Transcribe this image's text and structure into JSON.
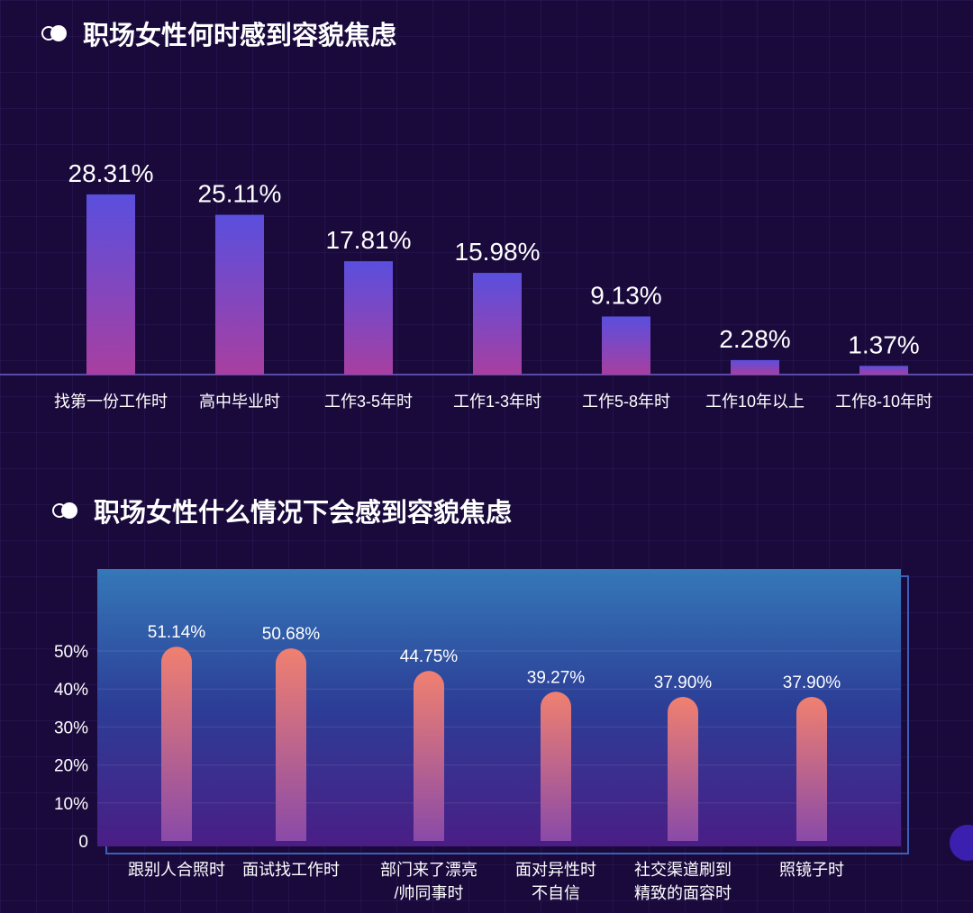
{
  "section1": {
    "title": "职场女性何时感到容貌焦虑"
  },
  "section2": {
    "title": "职场女性什么情况下会感到容貌焦虑"
  },
  "chart_data": [
    {
      "type": "bar",
      "title": "职场女性何时感到容貌焦虑",
      "categories": [
        "找第一份工作时",
        "高中毕业时",
        "工作3-5年时",
        "工作1-3年时",
        "工作5-8年时",
        "工作10年以上",
        "工作8-10年时"
      ],
      "values": [
        28.31,
        25.11,
        17.81,
        15.98,
        9.13,
        2.28,
        1.37
      ],
      "value_labels": [
        "28.31%",
        "25.11%",
        "17.81%",
        "15.98%",
        "9.13%",
        "2.28%",
        "1.37%"
      ],
      "ylim": [
        0,
        30
      ],
      "colors": {
        "bar_top": "#5a4fde",
        "bar_bottom": "#a83fa0",
        "baseline": "#5a4aa8"
      }
    },
    {
      "type": "bar",
      "title": "职场女性什么情况下会感到容貌焦虑",
      "categories": [
        [
          "跟别人合照时"
        ],
        [
          "面试找工作时"
        ],
        [
          "部门来了漂亮",
          "/帅同事时"
        ],
        [
          "面对异性时",
          "不自信"
        ],
        [
          "社交渠道刷到",
          "精致的面容时"
        ],
        [
          "照镜子时"
        ]
      ],
      "values": [
        51.14,
        50.68,
        44.75,
        39.27,
        37.9,
        37.9
      ],
      "value_labels": [
        "51.14%",
        "50.68%",
        "44.75%",
        "39.27%",
        "37.90%",
        "37.90%"
      ],
      "yticks": [
        "0",
        "10%",
        "20%",
        "30%",
        "40%",
        "50%"
      ],
      "ylim": [
        0,
        60
      ],
      "colors": {
        "panel_top": "#3578b8",
        "panel_mid": "#2c3d96",
        "panel_bottom": "#4a1e86",
        "bar_top": "#f08070",
        "bar_bottom": "#8a4aa8"
      }
    }
  ]
}
